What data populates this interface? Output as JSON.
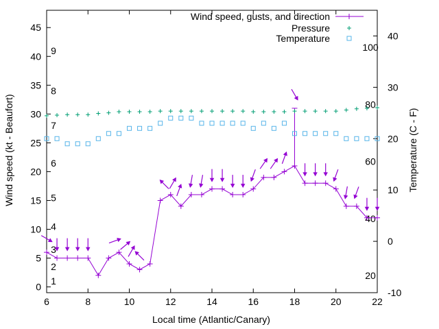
{
  "chart_data": {
    "type": "line",
    "xlabel": "Local time (Atlantic/Canary)",
    "ylabel_left": "Wind speed (kt - Beaufort)",
    "ylabel_right": "Temperature (C - F)",
    "xlim": [
      6,
      22
    ],
    "ylim_left": [
      -1,
      48
    ],
    "ylim_right": [
      -10,
      45
    ],
    "x_ticks": [
      "6",
      "8",
      "10",
      "12",
      "14",
      "16",
      "18",
      "20",
      "22"
    ],
    "y_left_ticks": [
      "0",
      "5",
      "10",
      "15",
      "20",
      "25",
      "30",
      "35",
      "40",
      "45"
    ],
    "y_right_ticks": [
      "-10",
      "0",
      "10",
      "20",
      "30",
      "40"
    ],
    "beaufort_labels": [
      "1",
      "2",
      "3",
      "4",
      "5",
      "6",
      "7",
      "8",
      "9"
    ],
    "fahrenheit_labels": [
      "20",
      "40",
      "60",
      "80",
      "100"
    ],
    "legend": {
      "position": "top-right",
      "entries": [
        "Wind speed, gusts, and direction",
        "Pressure",
        "Temperature"
      ]
    },
    "colors": {
      "wind": "#9400d3",
      "pressure": "#009e73",
      "temperature": "#56b4e9"
    },
    "series": [
      {
        "name": "Wind speed, gusts, and direction",
        "x": [
          6,
          6.5,
          7,
          7.5,
          8,
          8.5,
          9,
          9.5,
          10,
          10.5,
          11,
          11.5,
          12,
          12.5,
          13,
          13.5,
          14,
          14.5,
          15,
          15.5,
          16,
          16.5,
          17,
          17.5,
          18,
          18.5,
          19,
          19.5,
          20,
          20.5,
          21,
          21.5,
          22
        ],
        "values": [
          6,
          5,
          5,
          5,
          5,
          2,
          5,
          6,
          4,
          3,
          4,
          15,
          16,
          14,
          16,
          16,
          17,
          17,
          16,
          16,
          17,
          19,
          19,
          20,
          21,
          18,
          18,
          18,
          17,
          14,
          14,
          12,
          12
        ],
        "gust": [
          {
            "x": 18,
            "y": 31
          }
        ]
      },
      {
        "name": "Pressure",
        "x": [
          6,
          6.5,
          7,
          7.5,
          8,
          8.5,
          9,
          9.5,
          10,
          10.5,
          11,
          11.5,
          12,
          12.5,
          13,
          13.5,
          14,
          14.5,
          15,
          15.5,
          16,
          16.5,
          17,
          17.5,
          18,
          18.5,
          19,
          19.5,
          20,
          20.5,
          21,
          21.5,
          22
        ],
        "values": [
          29.7,
          29.8,
          29.9,
          29.9,
          29.9,
          30.1,
          30.2,
          30.4,
          30.4,
          30.4,
          30.4,
          30.5,
          30.5,
          30.5,
          30.5,
          30.5,
          30.5,
          30.5,
          30.5,
          30.5,
          30.4,
          30.4,
          30.4,
          30.4,
          30.5,
          30.5,
          30.5,
          30.5,
          30.5,
          30.7,
          30.9,
          31.0,
          31.1
        ]
      },
      {
        "name": "Temperature",
        "x": [
          6,
          6.5,
          7,
          7.5,
          8,
          8.5,
          9,
          9.5,
          10,
          10.5,
          11,
          11.5,
          12,
          12.5,
          13,
          13.5,
          14,
          14.5,
          15,
          15.5,
          16,
          16.5,
          17,
          17.5,
          18,
          18.5,
          19,
          19.5,
          20,
          20.5,
          21,
          21.5,
          22
        ],
        "values": [
          20,
          20,
          19,
          19,
          19,
          20,
          21,
          21,
          22,
          22,
          22,
          23,
          24,
          24,
          24,
          23,
          23,
          23,
          23,
          23,
          22,
          23,
          22,
          23,
          21,
          21,
          21,
          21,
          21,
          20,
          20,
          20,
          20
        ]
      }
    ],
    "direction_arrows": [
      {
        "x": 6,
        "dir": 300
      },
      {
        "x": 6.5,
        "dir": 0
      },
      {
        "x": 7,
        "dir": 0
      },
      {
        "x": 7.5,
        "dir": 0
      },
      {
        "x": 8,
        "dir": 0
      },
      {
        "x": 9.3,
        "dir": 250
      },
      {
        "x": 9.8,
        "dir": 230
      },
      {
        "x": 10.1,
        "dir": 210
      },
      {
        "x": 10.5,
        "dir": 135
      },
      {
        "x": 11.7,
        "dir": 135
      },
      {
        "x": 12.1,
        "dir": 210
      },
      {
        "x": 12.4,
        "dir": 200
      },
      {
        "x": 13,
        "dir": 10
      },
      {
        "x": 13.5,
        "dir": 10
      },
      {
        "x": 14,
        "dir": 0
      },
      {
        "x": 14.5,
        "dir": 0
      },
      {
        "x": 15,
        "dir": 0
      },
      {
        "x": 15.5,
        "dir": 0
      },
      {
        "x": 16,
        "dir": 20
      },
      {
        "x": 16.5,
        "dir": 215
      },
      {
        "x": 17,
        "dir": 215
      },
      {
        "x": 17.5,
        "dir": 200
      },
      {
        "x": 18,
        "dir": 330
      },
      {
        "x": 18.5,
        "dir": 0
      },
      {
        "x": 19,
        "dir": 0
      },
      {
        "x": 19.5,
        "dir": 0
      },
      {
        "x": 20,
        "dir": 20
      },
      {
        "x": 20.5,
        "dir": 10
      },
      {
        "x": 21,
        "dir": 20
      },
      {
        "x": 21.5,
        "dir": 0
      },
      {
        "x": 22,
        "dir": 0
      }
    ]
  }
}
